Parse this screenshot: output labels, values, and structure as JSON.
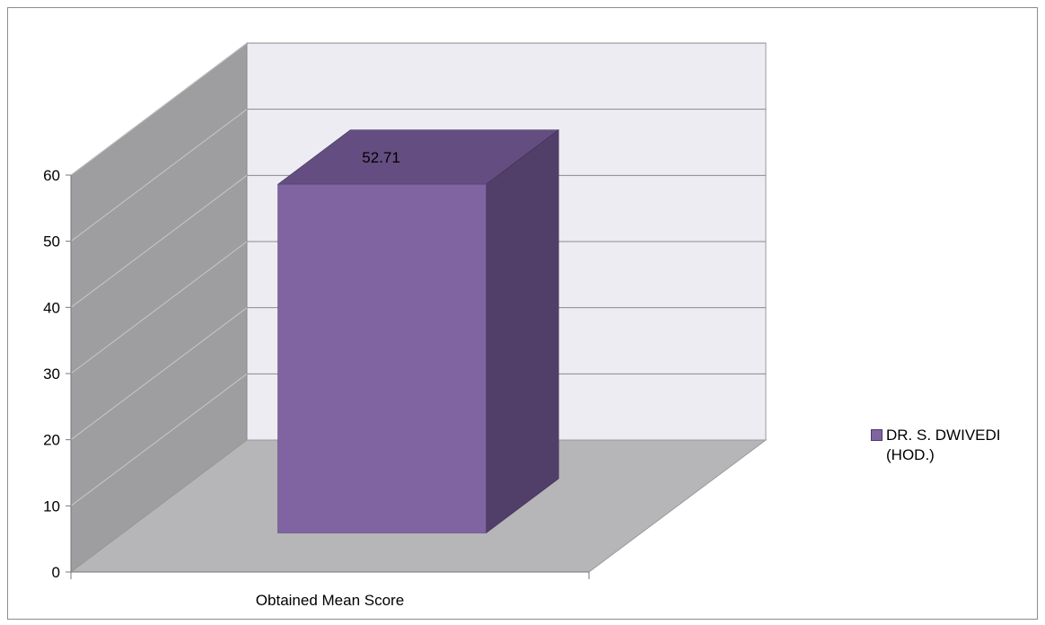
{
  "chart_data": {
    "type": "bar",
    "categories": [
      "Obtained Mean Score"
    ],
    "series": [
      {
        "name": "DR. S. DWIVEDI (HOD.)",
        "values": [
          52.71
        ]
      }
    ],
    "data_labels": [
      "52.71"
    ],
    "ylim": [
      0,
      60
    ],
    "yticks": [
      0,
      10,
      20,
      30,
      40,
      50,
      60
    ],
    "grid": true,
    "legend_position": "right",
    "colors": {
      "bar_front": "#8064A2",
      "bar_top": "#644D80",
      "bar_side": "#513F69",
      "back_wall": "#EEECF3",
      "side_wall": "#9E9D9F",
      "floor": "#B6B5B7"
    }
  }
}
